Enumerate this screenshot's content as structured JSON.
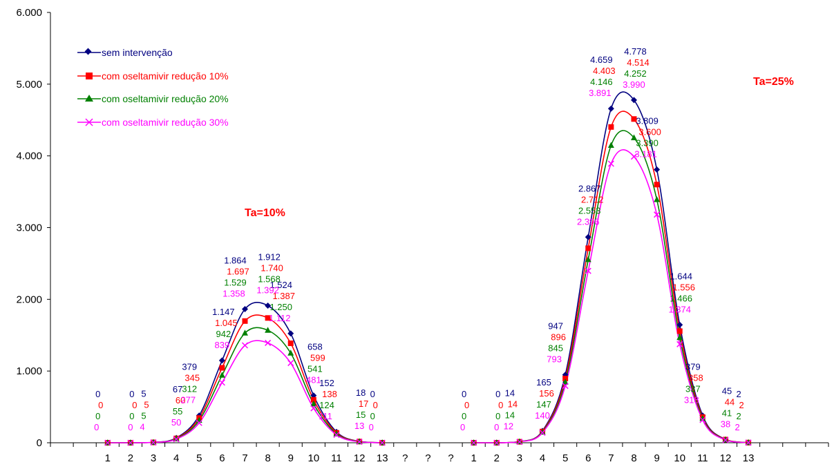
{
  "chart_data": {
    "type": "line",
    "x_tick_labels": [
      "1",
      "2",
      "3",
      "4",
      "5",
      "6",
      "7",
      "8",
      "9",
      "10",
      "11",
      "12",
      "13",
      "?",
      "?",
      "?",
      "1",
      "2",
      "3",
      "4",
      "5",
      "6",
      "7",
      "8",
      "9",
      "10",
      "11",
      "12",
      "13"
    ],
    "y_tick_labels": [
      "0",
      "1.000",
      "2.000",
      "3.000",
      "4.000",
      "5.000",
      "6.000"
    ],
    "ylim": [
      0,
      6000
    ],
    "y_step": 1000,
    "series": [
      {
        "name": "sem intervenção",
        "color": "#000080",
        "marker": "diamond",
        "values": [
          0,
          0,
          5,
          67,
          379,
          1147,
          1864,
          1912,
          1524,
          658,
          152,
          18,
          0,
          null,
          null,
          null,
          0,
          0,
          14,
          165,
          947,
          2867,
          4659,
          4778,
          3809,
          1644,
          379,
          45,
          2
        ],
        "labels": [
          "0",
          "0",
          "5",
          "67",
          "379",
          "1.147",
          "1.864",
          "1.912",
          "1.524",
          "658",
          "152",
          "18",
          "0",
          null,
          null,
          null,
          "0",
          "0",
          "14",
          "165",
          "947",
          "2.867",
          "4.659",
          "4.778",
          "3.809",
          "1.644",
          "379",
          "45",
          "2"
        ]
      },
      {
        "name": "com oseltamivir redução 10%",
        "color": "#ff0000",
        "marker": "square",
        "values": [
          0,
          0,
          5,
          60,
          345,
          1045,
          1697,
          1740,
          1387,
          599,
          138,
          17,
          0,
          null,
          null,
          null,
          0,
          0,
          14,
          156,
          896,
          2712,
          4403,
          4514,
          3600,
          1556,
          358,
          44,
          2
        ],
        "labels": [
          "0",
          "0",
          "5",
          "60",
          "345",
          "1.045",
          "1.697",
          "1.740",
          "1.387",
          "599",
          "138",
          "17",
          "0",
          null,
          null,
          null,
          "0",
          "0",
          "14",
          "156",
          "896",
          "2.712",
          "4.403",
          "4.514",
          "3.600",
          "1.556",
          "358",
          "44",
          "2"
        ]
      },
      {
        "name": "com oseltamivir redução 20%",
        "color": "#008000",
        "marker": "triangle",
        "values": [
          0,
          0,
          5,
          55,
          312,
          942,
          1529,
          1568,
          1250,
          541,
          124,
          15,
          0,
          null,
          null,
          null,
          0,
          0,
          14,
          147,
          845,
          2553,
          4146,
          4252,
          3390,
          1466,
          337,
          41,
          2
        ],
        "labels": [
          "0",
          "0",
          "5",
          "55",
          "312",
          "942",
          "1.529",
          "1.568",
          "1.250",
          "541",
          "124",
          "15",
          "0",
          null,
          null,
          null,
          "0",
          "0",
          "14",
          "147",
          "845",
          "2.553",
          "4.146",
          "4.252",
          "3.390",
          "1.466",
          "337",
          "41",
          "2"
        ]
      },
      {
        "name": "com oseltamivir redução 30%",
        "color": "#ff00ff",
        "marker": "x",
        "values": [
          0,
          0,
          4,
          50,
          277,
          839,
          1358,
          1392,
          1112,
          481,
          111,
          13,
          0,
          null,
          null,
          null,
          0,
          0,
          12,
          140,
          793,
          2396,
          3891,
          3990,
          3181,
          1374,
          318,
          38,
          2
        ],
        "labels": [
          "0",
          "0",
          "4",
          "50",
          "277",
          "839",
          "1.358",
          "1.392",
          "1.112",
          "481",
          "111",
          "13",
          "0",
          null,
          null,
          null,
          "0",
          "0",
          "12",
          "140",
          "793",
          "2.396",
          "3.891",
          "3.990",
          "3.181",
          "1.374",
          "318",
          "38",
          "2"
        ]
      }
    ],
    "annotations": [
      "Ta=10%",
      "Ta=25%"
    ],
    "legend_position": "top-left"
  }
}
